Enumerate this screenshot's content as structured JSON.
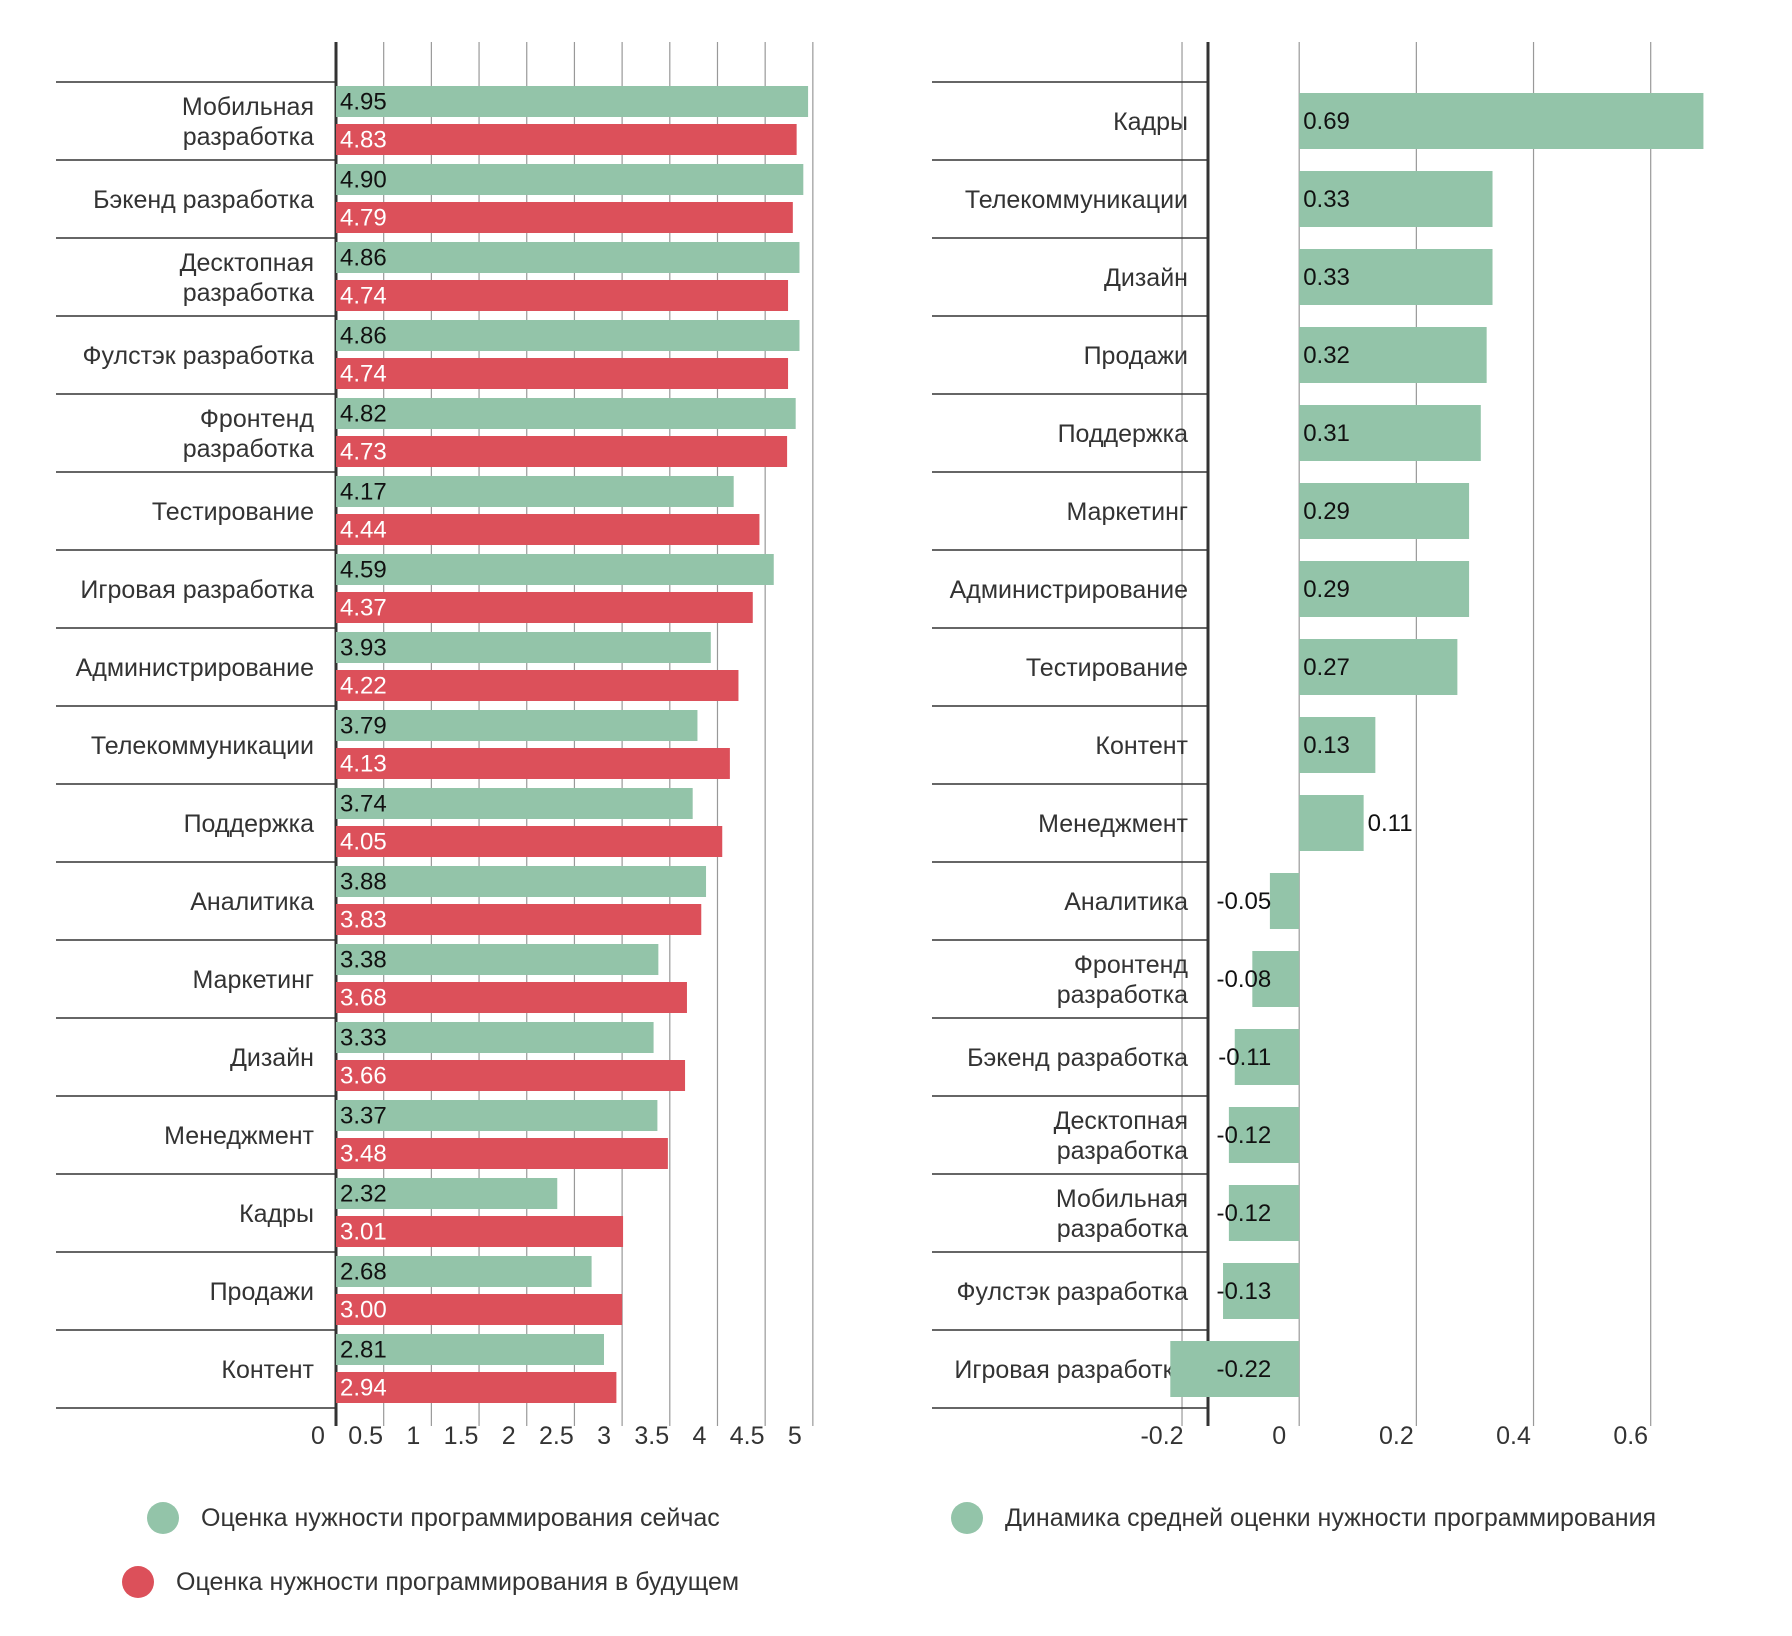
{
  "colors": {
    "current": "#93c4a9",
    "future": "#dc505a",
    "axis": "#333333",
    "grid": "#999999",
    "text": "#333333"
  },
  "chart_data": [
    {
      "type": "bar",
      "orientation": "horizontal",
      "title": "",
      "xlim": [
        0,
        5.4
      ],
      "ticks": [
        "0",
        "0.5",
        "1",
        "1.5",
        "2",
        "2.5",
        "3",
        "3.5",
        "4",
        "4.5",
        "5"
      ],
      "tick_values": [
        0,
        0.5,
        1,
        1.5,
        2,
        2.5,
        3,
        3.5,
        4,
        4.5,
        5
      ],
      "categories": [
        [
          "Мобильная",
          "разработка"
        ],
        [
          "Бэкенд разработка"
        ],
        [
          "Десктопная",
          "разработка"
        ],
        [
          "Фулстэк разработка"
        ],
        [
          "Фронтенд",
          "разработка"
        ],
        [
          "Тестирование"
        ],
        [
          "Игровая разработка"
        ],
        [
          "Администрирование"
        ],
        [
          "Телекоммуникации"
        ],
        [
          "Поддержка"
        ],
        [
          "Аналитика"
        ],
        [
          "Маркетинг"
        ],
        [
          "Дизайн"
        ],
        [
          "Менеджмент"
        ],
        [
          "Кадры"
        ],
        [
          "Продажи"
        ],
        [
          "Контент"
        ]
      ],
      "series": [
        {
          "name": "Оценка нужности программирования сейчас",
          "color": "#93c4a9",
          "label_color": "#111111",
          "values": [
            4.95,
            4.9,
            4.86,
            4.86,
            4.82,
            4.17,
            4.59,
            3.93,
            3.79,
            3.74,
            3.88,
            3.38,
            3.33,
            3.37,
            2.32,
            2.68,
            2.81
          ],
          "labels": [
            "4.95",
            "4.90",
            "4.86",
            "4.86",
            "4.82",
            "4.17",
            "4.59",
            "3.93",
            "3.79",
            "3.74",
            "3.88",
            "3.38",
            "3.33",
            "3.37",
            "2.32",
            "2.68",
            "2.81"
          ]
        },
        {
          "name": "Оценка нужности программирования в будущем",
          "color": "#dc505a",
          "label_color": "#ffffff",
          "values": [
            4.83,
            4.79,
            4.74,
            4.74,
            4.73,
            4.44,
            4.37,
            4.22,
            4.13,
            4.05,
            3.83,
            3.68,
            3.66,
            3.48,
            3.01,
            3.0,
            2.94
          ],
          "labels": [
            "4.83",
            "4.79",
            "4.74",
            "4.74",
            "4.73",
            "4.44",
            "4.37",
            "4.22",
            "4.13",
            "4.05",
            "3.83",
            "3.68",
            "3.66",
            "3.48",
            "3.01",
            "3.00",
            "2.94"
          ]
        }
      ]
    },
    {
      "type": "bar",
      "orientation": "horizontal",
      "title": "",
      "xlim": [
        -0.34,
        0.72
      ],
      "ticks": [
        "-0.2",
        "0",
        "0.2",
        "0.4",
        "0.6"
      ],
      "tick_values": [
        -0.2,
        0,
        0.2,
        0.4,
        0.6
      ],
      "categories": [
        [
          "Кадры"
        ],
        [
          "Телекоммуникации"
        ],
        [
          "Дизайн"
        ],
        [
          "Продажи"
        ],
        [
          "Поддержка"
        ],
        [
          "Маркетинг"
        ],
        [
          "Администрирование"
        ],
        [
          "Тестирование"
        ],
        [
          "Контент"
        ],
        [
          "Менеджмент"
        ],
        [
          "Аналитика"
        ],
        [
          "Фронтенд",
          "разработка"
        ],
        [
          "Бэкенд разработка"
        ],
        [
          "Десктопная",
          "разработка"
        ],
        [
          "Мобильная",
          "разработка"
        ],
        [
          "Фулстэк разработка"
        ],
        [
          "Игровая разработка"
        ]
      ],
      "series": [
        {
          "name": "Динамика средней оценки нужности программирования",
          "color": "#93c4a9",
          "label_color": "#111111",
          "values": [
            0.69,
            0.33,
            0.33,
            0.32,
            0.31,
            0.29,
            0.29,
            0.27,
            0.13,
            0.11,
            -0.05,
            -0.08,
            -0.11,
            -0.12,
            -0.12,
            -0.13,
            -0.22
          ],
          "labels": [
            "0.69",
            "0.33",
            "0.33",
            "0.32",
            "0.31",
            "0.29",
            "0.29",
            "0.27",
            "0.13",
            "0.11",
            "-0.05",
            "-0.08",
            "-0.11",
            "-0.12",
            "-0.12",
            "-0.13",
            "-0.22"
          ]
        }
      ]
    }
  ],
  "legend": [
    {
      "label": "Оценка нужности программирования сейчас",
      "color": "#93c4a9"
    },
    {
      "label": "Оценка нужности программирования в будущем",
      "color": "#dc505a"
    },
    {
      "label": "Динамика средней оценки нужности программирования",
      "color": "#93c4a9"
    }
  ]
}
